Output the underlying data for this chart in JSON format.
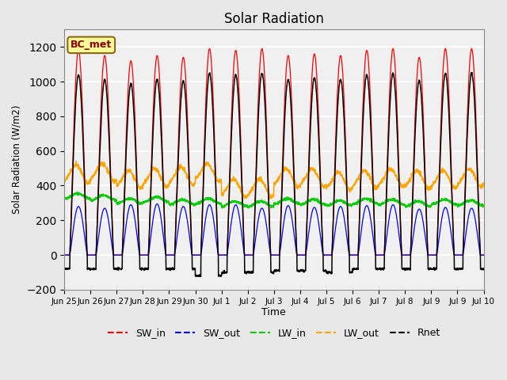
{
  "title": "Solar Radiation",
  "ylabel": "Solar Radiation (W/m2)",
  "xlabel": "Time",
  "ylim": [
    -200,
    1300
  ],
  "yticks": [
    -200,
    0,
    200,
    400,
    600,
    800,
    1000,
    1200
  ],
  "annotation_text": "BC_met",
  "legend_colors": [
    "#FF0000",
    "#0000FF",
    "#00CC00",
    "#FFA500",
    "#000000"
  ],
  "background_color": "#E8E8E8",
  "plot_bg_color": "#F0F0F0",
  "n_days": 16,
  "xtick_labels": [
    "Jun 25",
    "Jun 26",
    "Jun 27",
    "Jun 28",
    "Jun 29",
    "Jun 30",
    "Jul 1",
    "Jul 2",
    "Jul 3",
    "Jul 4",
    "Jul 5",
    "Jul 6",
    "Jul 7",
    "Jul 8",
    "Jul 9",
    "Jul 9",
    "Jul 10"
  ],
  "SW_in_peak": [
    1180,
    1150,
    1120,
    1150,
    1140,
    1190,
    1180,
    1190,
    1150,
    1160,
    1150,
    1180,
    1190,
    1140,
    1190,
    1190
  ],
  "SW_out_peak": [
    280,
    270,
    290,
    295,
    280,
    290,
    290,
    270,
    285,
    275,
    280,
    285,
    290,
    265,
    275,
    270
  ],
  "LW_in_mean": [
    340,
    330,
    310,
    320,
    305,
    310,
    295,
    295,
    310,
    305,
    300,
    310,
    305,
    295,
    305,
    300
  ],
  "LW_out_mean": [
    450,
    460,
    420,
    430,
    440,
    460,
    370,
    370,
    430,
    430,
    410,
    420,
    430,
    420,
    420,
    430
  ],
  "Rnet_night": [
    -80,
    -80,
    -80,
    -80,
    -80,
    -120,
    -100,
    -100,
    -90,
    -90,
    -100,
    -80,
    -80,
    -80,
    -80,
    -80
  ]
}
